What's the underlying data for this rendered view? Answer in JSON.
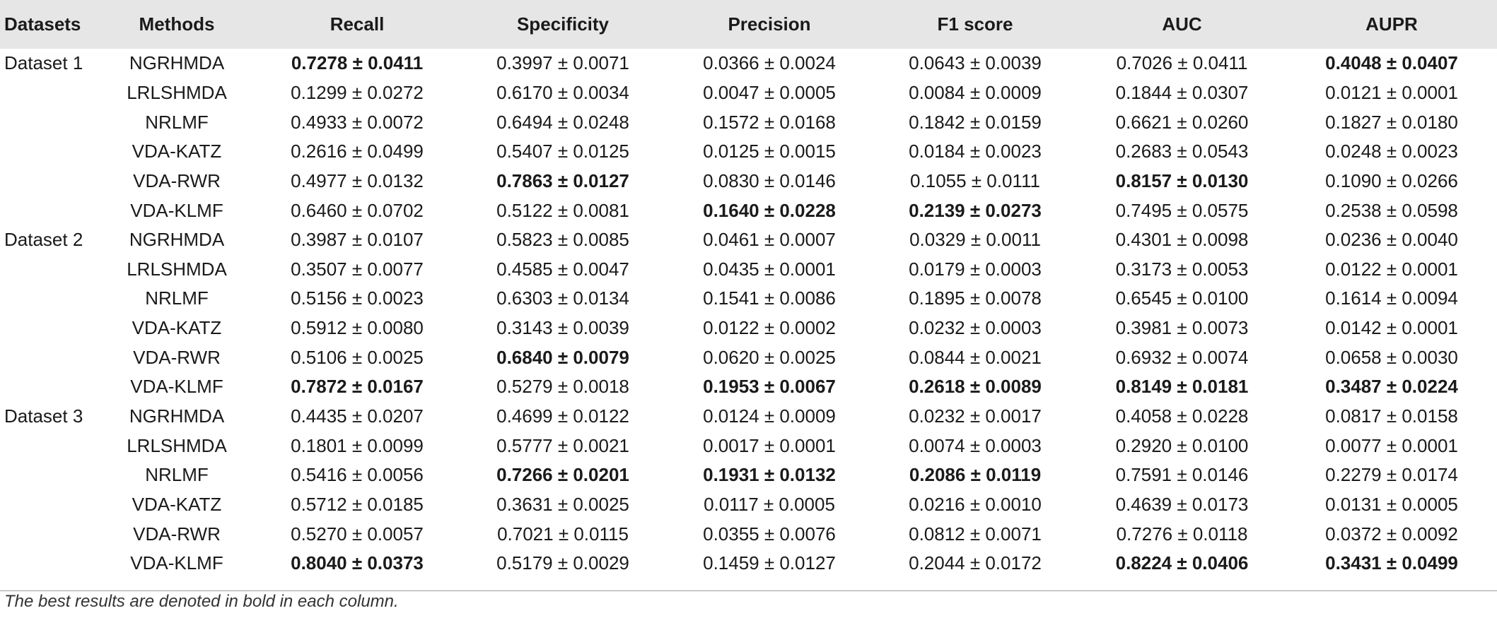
{
  "table": {
    "columns": [
      "Datasets",
      "Methods",
      "Recall",
      "Specificity",
      "Precision",
      "F1 score",
      "AUC",
      "AUPR"
    ],
    "rows": [
      {
        "dataset": "Dataset 1",
        "method": "NGRHMDA",
        "values": [
          "0.7278 ± 0.0411",
          "0.3997 ± 0.0071",
          "0.0366 ± 0.0024",
          "0.0643 ± 0.0039",
          "0.7026 ± 0.0411",
          "0.4048 ± 0.0407"
        ],
        "bold": [
          true,
          false,
          false,
          false,
          false,
          true
        ]
      },
      {
        "dataset": "",
        "method": "LRLSHMDA",
        "values": [
          "0.1299 ± 0.0272",
          "0.6170 ± 0.0034",
          "0.0047 ± 0.0005",
          "0.0084 ± 0.0009",
          "0.1844 ± 0.0307",
          "0.0121 ± 0.0001"
        ],
        "bold": [
          false,
          false,
          false,
          false,
          false,
          false
        ]
      },
      {
        "dataset": "",
        "method": "NRLMF",
        "values": [
          "0.4933 ± 0.0072",
          "0.6494 ± 0.0248",
          "0.1572 ± 0.0168",
          "0.1842 ± 0.0159",
          "0.6621 ± 0.0260",
          "0.1827 ± 0.0180"
        ],
        "bold": [
          false,
          false,
          false,
          false,
          false,
          false
        ]
      },
      {
        "dataset": "",
        "method": "VDA-KATZ",
        "values": [
          "0.2616 ± 0.0499",
          "0.5407 ± 0.0125",
          "0.0125 ± 0.0015",
          "0.0184 ± 0.0023",
          "0.2683 ± 0.0543",
          "0.0248 ± 0.0023"
        ],
        "bold": [
          false,
          false,
          false,
          false,
          false,
          false
        ]
      },
      {
        "dataset": "",
        "method": "VDA-RWR",
        "values": [
          "0.4977 ± 0.0132",
          "0.7863 ± 0.0127",
          "0.0830 ± 0.0146",
          "0.1055 ± 0.0111",
          "0.8157 ± 0.0130",
          "0.1090 ± 0.0266"
        ],
        "bold": [
          false,
          true,
          false,
          false,
          true,
          false
        ]
      },
      {
        "dataset": "",
        "method": "VDA-KLMF",
        "values": [
          "0.6460 ± 0.0702",
          "0.5122 ± 0.0081",
          "0.1640 ± 0.0228",
          "0.2139 ± 0.0273",
          "0.7495 ± 0.0575",
          "0.2538 ± 0.0598"
        ],
        "bold": [
          false,
          false,
          true,
          true,
          false,
          false
        ]
      },
      {
        "dataset": "Dataset 2",
        "method": "NGRHMDA",
        "values": [
          "0.3987 ± 0.0107",
          "0.5823 ± 0.0085",
          "0.0461 ± 0.0007",
          "0.0329 ± 0.0011",
          "0.4301 ± 0.0098",
          "0.0236 ± 0.0040"
        ],
        "bold": [
          false,
          false,
          false,
          false,
          false,
          false
        ]
      },
      {
        "dataset": "",
        "method": "LRLSHMDA",
        "values": [
          "0.3507 ± 0.0077",
          "0.4585 ± 0.0047",
          "0.0435 ± 0.0001",
          "0.0179 ± 0.0003",
          "0.3173 ± 0.0053",
          "0.0122 ± 0.0001"
        ],
        "bold": [
          false,
          false,
          false,
          false,
          false,
          false
        ]
      },
      {
        "dataset": "",
        "method": "NRLMF",
        "values": [
          "0.5156 ± 0.0023",
          "0.6303 ± 0.0134",
          "0.1541 ± 0.0086",
          "0.1895 ± 0.0078",
          "0.6545 ± 0.0100",
          "0.1614 ± 0.0094"
        ],
        "bold": [
          false,
          false,
          false,
          false,
          false,
          false
        ]
      },
      {
        "dataset": "",
        "method": "VDA-KATZ",
        "values": [
          "0.5912 ± 0.0080",
          "0.3143 ± 0.0039",
          "0.0122 ± 0.0002",
          "0.0232 ± 0.0003",
          "0.3981 ± 0.0073",
          "0.0142 ± 0.0001"
        ],
        "bold": [
          false,
          false,
          false,
          false,
          false,
          false
        ]
      },
      {
        "dataset": "",
        "method": "VDA-RWR",
        "values": [
          "0.5106 ± 0.0025",
          "0.6840 ± 0.0079",
          "0.0620 ± 0.0025",
          "0.0844 ± 0.0021",
          "0.6932 ± 0.0074",
          "0.0658 ± 0.0030"
        ],
        "bold": [
          false,
          true,
          false,
          false,
          false,
          false
        ]
      },
      {
        "dataset": "",
        "method": "VDA-KLMF",
        "values": [
          "0.7872 ± 0.0167",
          "0.5279 ± 0.0018",
          "0.1953 ± 0.0067",
          "0.2618 ± 0.0089",
          "0.8149 ± 0.0181",
          "0.3487 ± 0.0224"
        ],
        "bold": [
          true,
          false,
          true,
          true,
          true,
          true
        ]
      },
      {
        "dataset": "Dataset 3",
        "method": "NGRHMDA",
        "values": [
          "0.4435 ± 0.0207",
          "0.4699 ± 0.0122",
          "0.0124 ± 0.0009",
          "0.0232 ± 0.0017",
          "0.4058 ± 0.0228",
          "0.0817 ± 0.0158"
        ],
        "bold": [
          false,
          false,
          false,
          false,
          false,
          false
        ]
      },
      {
        "dataset": "",
        "method": "LRLSHMDA",
        "values": [
          "0.1801 ± 0.0099",
          "0.5777 ± 0.0021",
          "0.0017 ± 0.0001",
          "0.0074 ± 0.0003",
          "0.2920 ± 0.0100",
          "0.0077 ± 0.0001"
        ],
        "bold": [
          false,
          false,
          false,
          false,
          false,
          false
        ]
      },
      {
        "dataset": "",
        "method": "NRLMF",
        "values": [
          "0.5416 ± 0.0056",
          "0.7266 ± 0.0201",
          "0.1931 ± 0.0132",
          "0.2086 ± 0.0119",
          "0.7591 ± 0.0146",
          "0.2279 ± 0.0174"
        ],
        "bold": [
          false,
          true,
          true,
          true,
          false,
          false
        ]
      },
      {
        "dataset": "",
        "method": "VDA-KATZ",
        "values": [
          "0.5712 ± 0.0185",
          "0.3631 ± 0.0025",
          "0.0117 ± 0.0005",
          "0.0216 ± 0.0010",
          "0.4639 ± 0.0173",
          "0.0131 ± 0.0005"
        ],
        "bold": [
          false,
          false,
          false,
          false,
          false,
          false
        ]
      },
      {
        "dataset": "",
        "method": "VDA-RWR",
        "values": [
          "0.5270 ± 0.0057",
          "0.7021 ± 0.0115",
          "0.0355 ± 0.0076",
          "0.0812 ± 0.0071",
          "0.7276 ± 0.0118",
          "0.0372 ± 0.0092"
        ],
        "bold": [
          false,
          false,
          false,
          false,
          false,
          false
        ]
      },
      {
        "dataset": "",
        "method": "VDA-KLMF",
        "values": [
          "0.8040 ± 0.0373",
          "0.5179 ± 0.0029",
          "0.1459 ± 0.0127",
          "0.2044 ± 0.0172",
          "0.8224 ± 0.0406",
          "0.3431 ± 0.0499"
        ],
        "bold": [
          true,
          false,
          false,
          false,
          true,
          true
        ]
      }
    ]
  },
  "footnote": "The best results are denoted in bold in each column."
}
